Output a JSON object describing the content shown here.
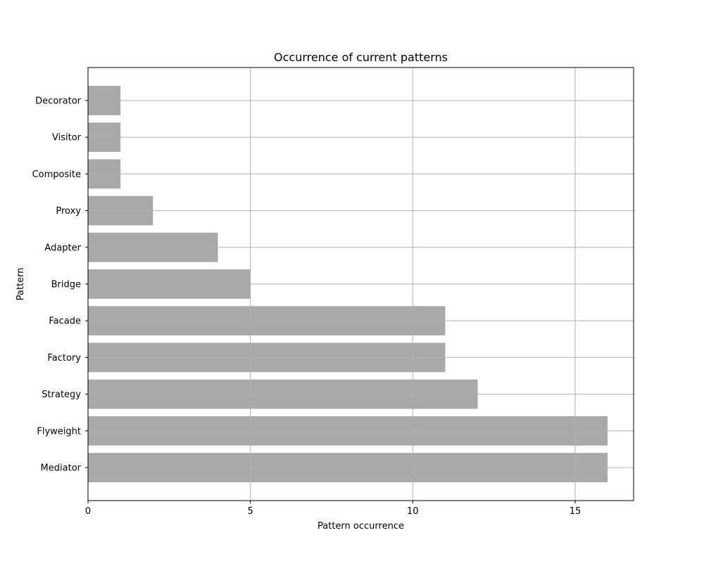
{
  "chart_data": {
    "type": "bar",
    "orientation": "horizontal",
    "title": "Occurrence of current patterns",
    "xlabel": "Pattern occurrence",
    "ylabel": "Pattern",
    "categories": [
      "Mediator",
      "Flyweight",
      "Strategy",
      "Factory",
      "Facade",
      "Bridge",
      "Adapter",
      "Proxy",
      "Composite",
      "Visitor",
      "Decorator"
    ],
    "values": [
      16,
      16,
      12,
      11,
      11,
      5,
      4,
      2,
      1,
      1,
      1
    ],
    "xlim": [
      0,
      16.8
    ],
    "xticks": [
      0,
      5,
      10,
      15
    ],
    "grid": true,
    "bar_color": "#a9a9a9",
    "grid_color": "#b0b0b0"
  }
}
